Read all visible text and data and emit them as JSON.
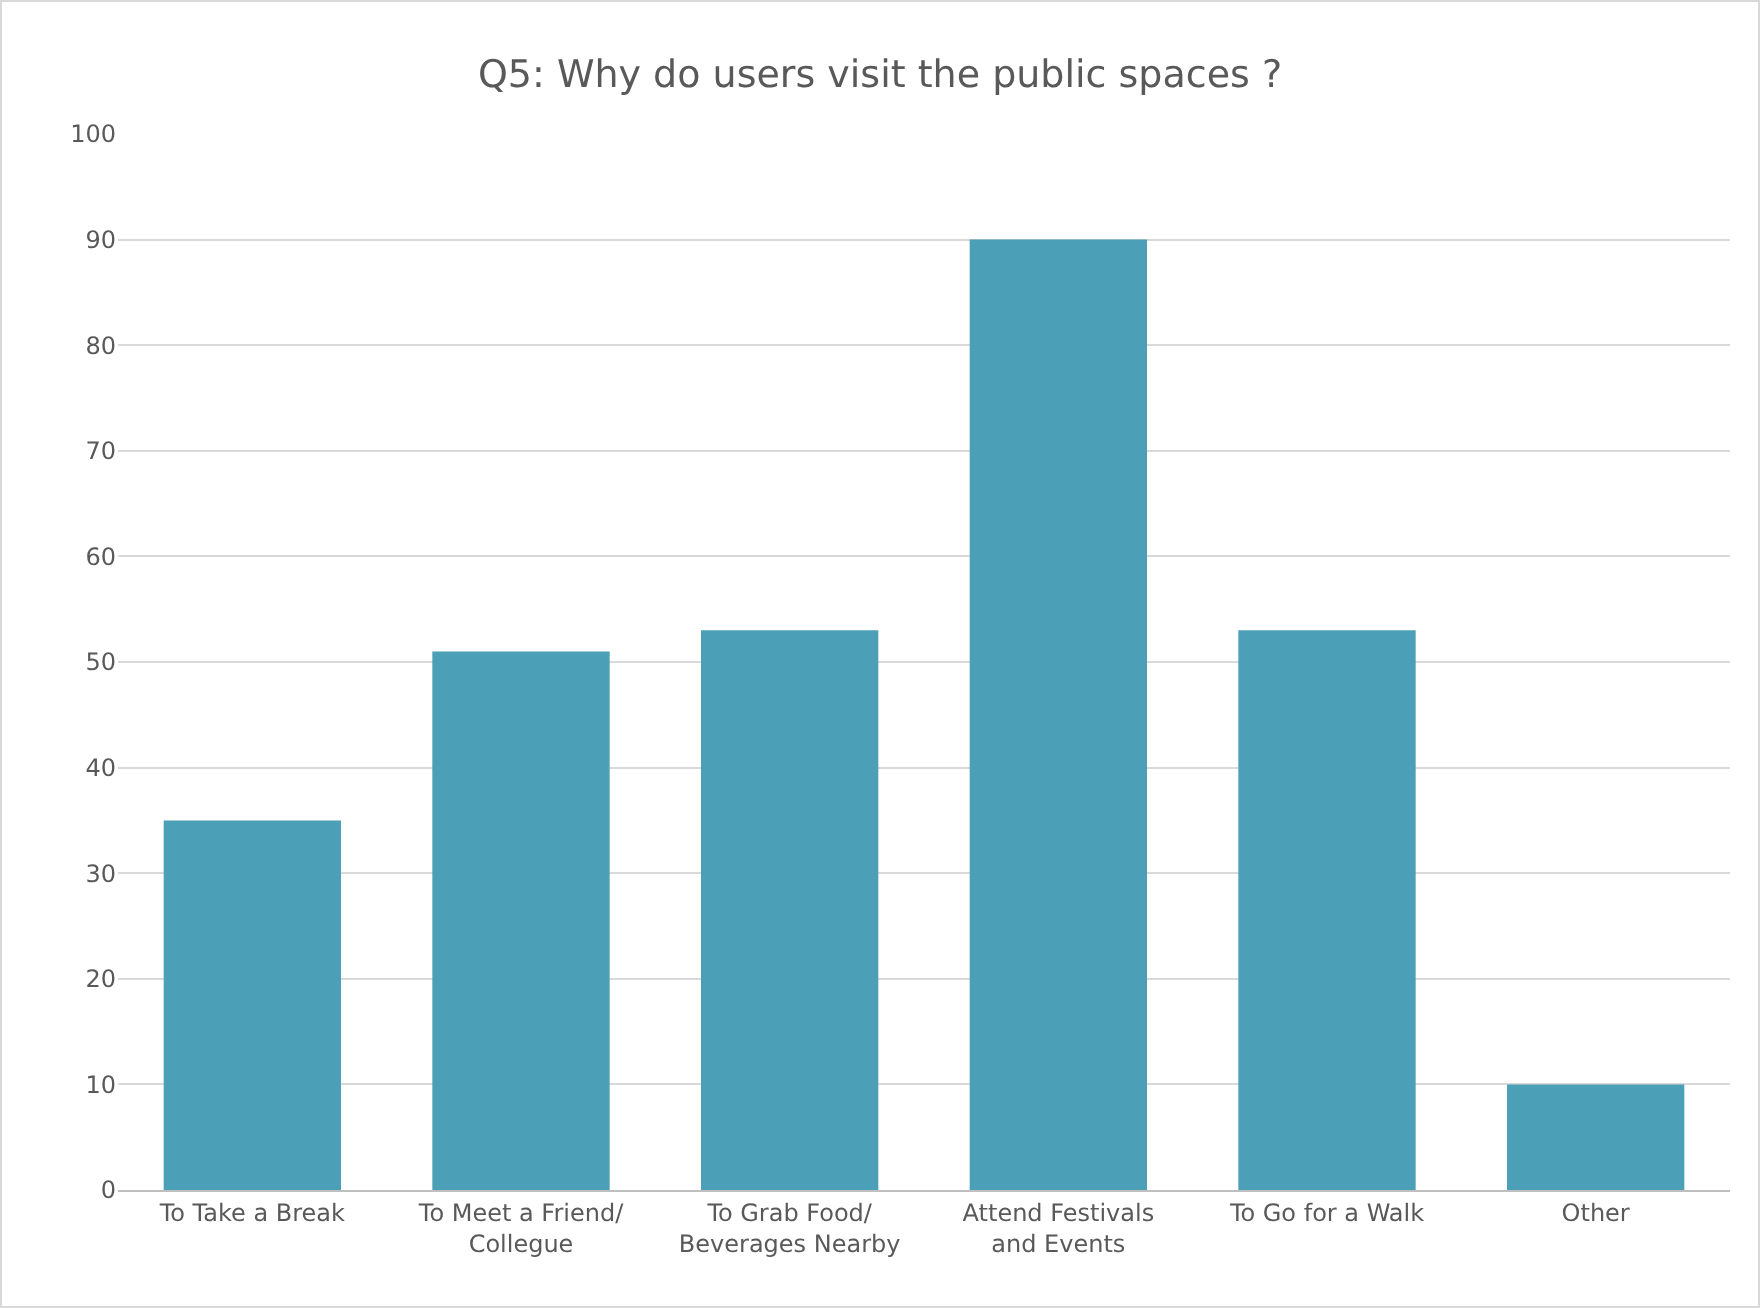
{
  "chart_data": {
    "type": "bar",
    "title": "Q5: Why do users visit the public spaces ?",
    "categories": [
      "To Take a Break",
      "To Meet a Friend/\nCollegue",
      "To Grab Food/\nBeverages Nearby",
      "Attend Festivals\nand Events",
      "To Go for a Walk",
      "Other"
    ],
    "values": [
      35,
      51,
      53,
      90,
      53,
      10
    ],
    "color": "#4b9fb6",
    "ylim": [
      0,
      100
    ],
    "yticks": [
      0,
      10,
      20,
      30,
      40,
      50,
      60,
      70,
      80,
      90,
      100
    ],
    "grid": "y"
  }
}
